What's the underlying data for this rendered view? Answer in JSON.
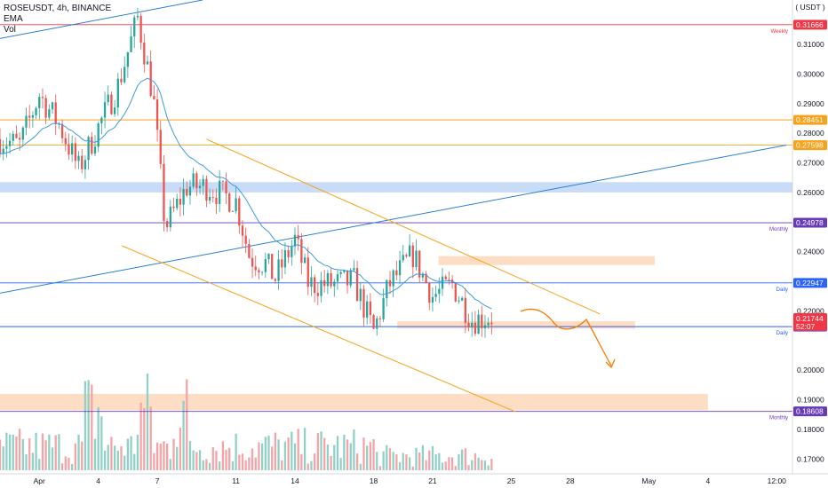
{
  "legend": {
    "symbol_line": "ROSEUSDT, 4h, BINANCE",
    "indicator1": "EMA",
    "indicator2": "Vol"
  },
  "currency": "( USDT )",
  "chart_data": {
    "type": "candlestick",
    "y_ticks": [
      "0.31000",
      "0.30000",
      "0.29000",
      "0.28000",
      "0.27000",
      "0.26000",
      "0.24000",
      "0.22000",
      "0.20000",
      "0.19000",
      "0.18000",
      "0.17000"
    ],
    "ylim": [
      0.165,
      0.325
    ],
    "x_ticks": [
      "Apr",
      "4",
      "7",
      "11",
      "14",
      "18",
      "21",
      "25",
      "28",
      "May",
      "4",
      "12:00"
    ],
    "x_tick_days": [
      1,
      4,
      7,
      11,
      14,
      18,
      21,
      25,
      28,
      32,
      35,
      38.5
    ],
    "xlim": [
      -1,
      39.3
    ],
    "levels": [
      {
        "value": 0.31666,
        "label": "0.31666",
        "note": "Weekly",
        "color": "#f23645"
      },
      {
        "value": 0.28451,
        "label": "0.28451",
        "note": "",
        "color": "#f7a21b"
      },
      {
        "value": 0.27598,
        "label": "0.27598",
        "note": "",
        "color": "#f7a21b"
      },
      {
        "value": 0.24978,
        "label": "0.24978",
        "note": "Monthly",
        "color": "#673ab7"
      },
      {
        "value": 0.22947,
        "label": "0.22947",
        "note": "Daily",
        "color": "#2962ff"
      },
      {
        "value": 0.2147,
        "label": "0.21470",
        "note": "Daily",
        "color": "#2962ff"
      },
      {
        "value": 0.18608,
        "label": "0.18608",
        "note": "Monthly",
        "color": "#673ab7"
      }
    ],
    "last_price": {
      "value": 0.21744,
      "label": "0.21744",
      "countdown": "52:07",
      "color": "#f23645"
    },
    "zones": [
      {
        "y1": 0.2635,
        "y2": 0.26,
        "x1": -1,
        "x2": 39.3,
        "color": "#bbd3f5"
      },
      {
        "y1": 0.2385,
        "y2": 0.2355,
        "x1": 21.3,
        "x2": 32.3,
        "color": "#fcd5b5"
      },
      {
        "y1": 0.2165,
        "y2": 0.214,
        "x1": 19.2,
        "x2": 31.3,
        "color": "#fcd5b5"
      },
      {
        "y1": 0.192,
        "y2": 0.1865,
        "x1": -1,
        "x2": 35.0,
        "color": "#fcd5b5"
      }
    ],
    "trendlines": [
      {
        "x1": -1,
        "y1": 0.312,
        "x2": 9.3,
        "y2": 0.325,
        "color": "#2a7fd4"
      },
      {
        "x1": -1,
        "y1": 0.226,
        "x2": 39.0,
        "y2": 0.276,
        "color": "#2a7fd4"
      },
      {
        "x1": 9.5,
        "y1": 0.278,
        "x2": 29.5,
        "y2": 0.219,
        "color": "#f7a21b"
      },
      {
        "x1": 5.2,
        "y1": 0.242,
        "x2": 25.2,
        "y2": 0.186,
        "color": "#f7a21b"
      }
    ],
    "series": [
      {
        "name": "EMA",
        "color": "#3c9be0"
      },
      {
        "name": "Vol",
        "up_color": "#8fd1c6",
        "down_color": "#f5a3a6"
      }
    ]
  }
}
